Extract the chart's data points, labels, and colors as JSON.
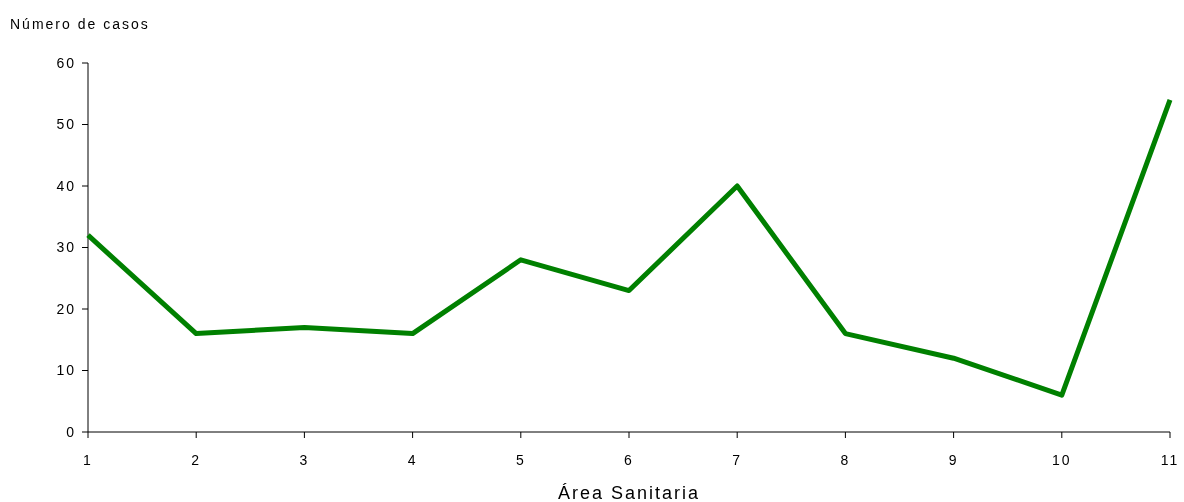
{
  "chart_data": {
    "type": "line",
    "xlabel": "Área Sanitaria",
    "ylabel": "Número de casos",
    "x": [
      1,
      2,
      3,
      4,
      5,
      6,
      7,
      8,
      9,
      10,
      11
    ],
    "series": [
      {
        "color": "#008000",
        "values": [
          32,
          16,
          17,
          16,
          28,
          23,
          40,
          16,
          12,
          6,
          54
        ]
      }
    ],
    "xlim": [
      1,
      11
    ],
    "xticks": [
      1,
      2,
      3,
      4,
      5,
      6,
      7,
      8,
      9,
      10,
      11
    ],
    "ylim": [
      0,
      60
    ],
    "yticks": [
      0,
      10,
      20,
      30,
      40,
      50,
      60
    ],
    "grid": false,
    "marker": "none",
    "line_style": "solid"
  }
}
